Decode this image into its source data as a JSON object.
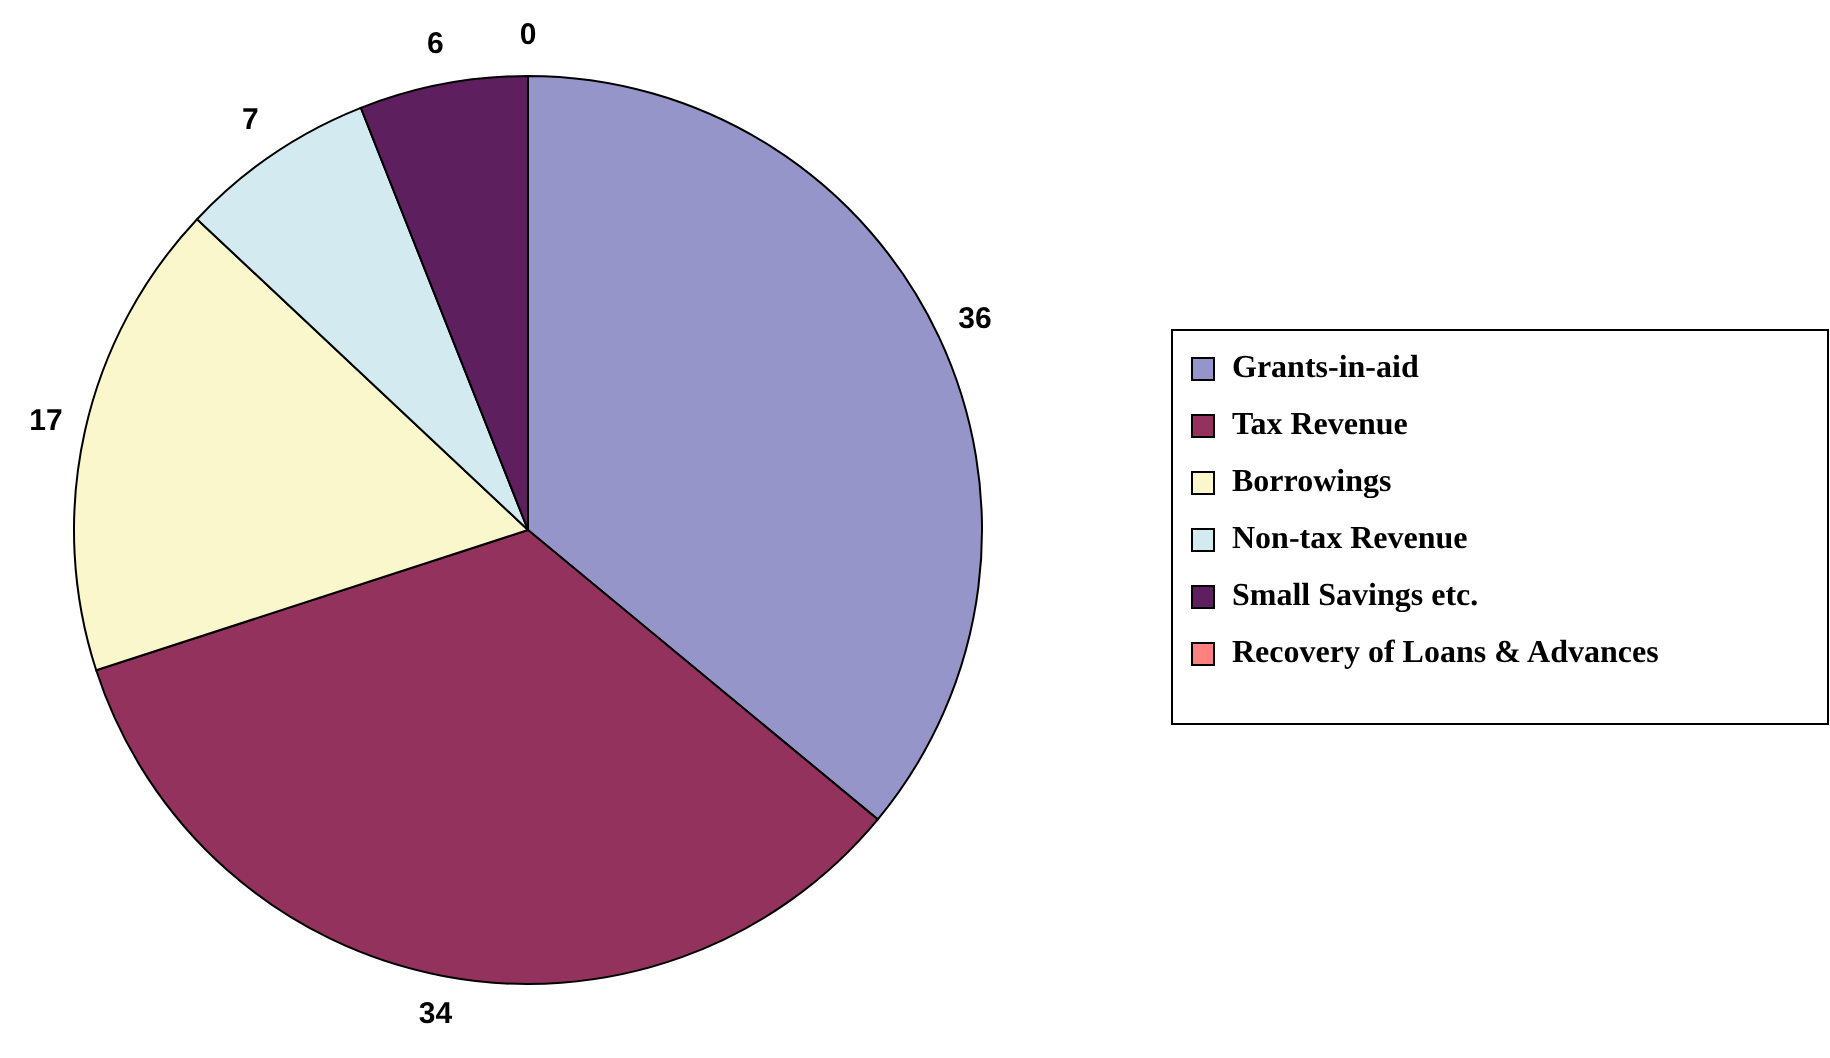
{
  "chart_data": {
    "type": "pie",
    "categories": [
      "Grants-in-aid",
      "Tax Revenue",
      "Borrowings",
      "Non-tax Revenue",
      "Small Savings etc.",
      "Recovery of Loans & Advances"
    ],
    "values": [
      36,
      34,
      17,
      7,
      6,
      0
    ],
    "colors": [
      "#9595c9",
      "#94325e",
      "#faf7cc",
      "#d3ebf0",
      "#5e1f5e",
      "#ff8080"
    ],
    "value_labels": [
      "36",
      "34",
      "17",
      "7",
      "6",
      "0"
    ],
    "legend": "right"
  }
}
